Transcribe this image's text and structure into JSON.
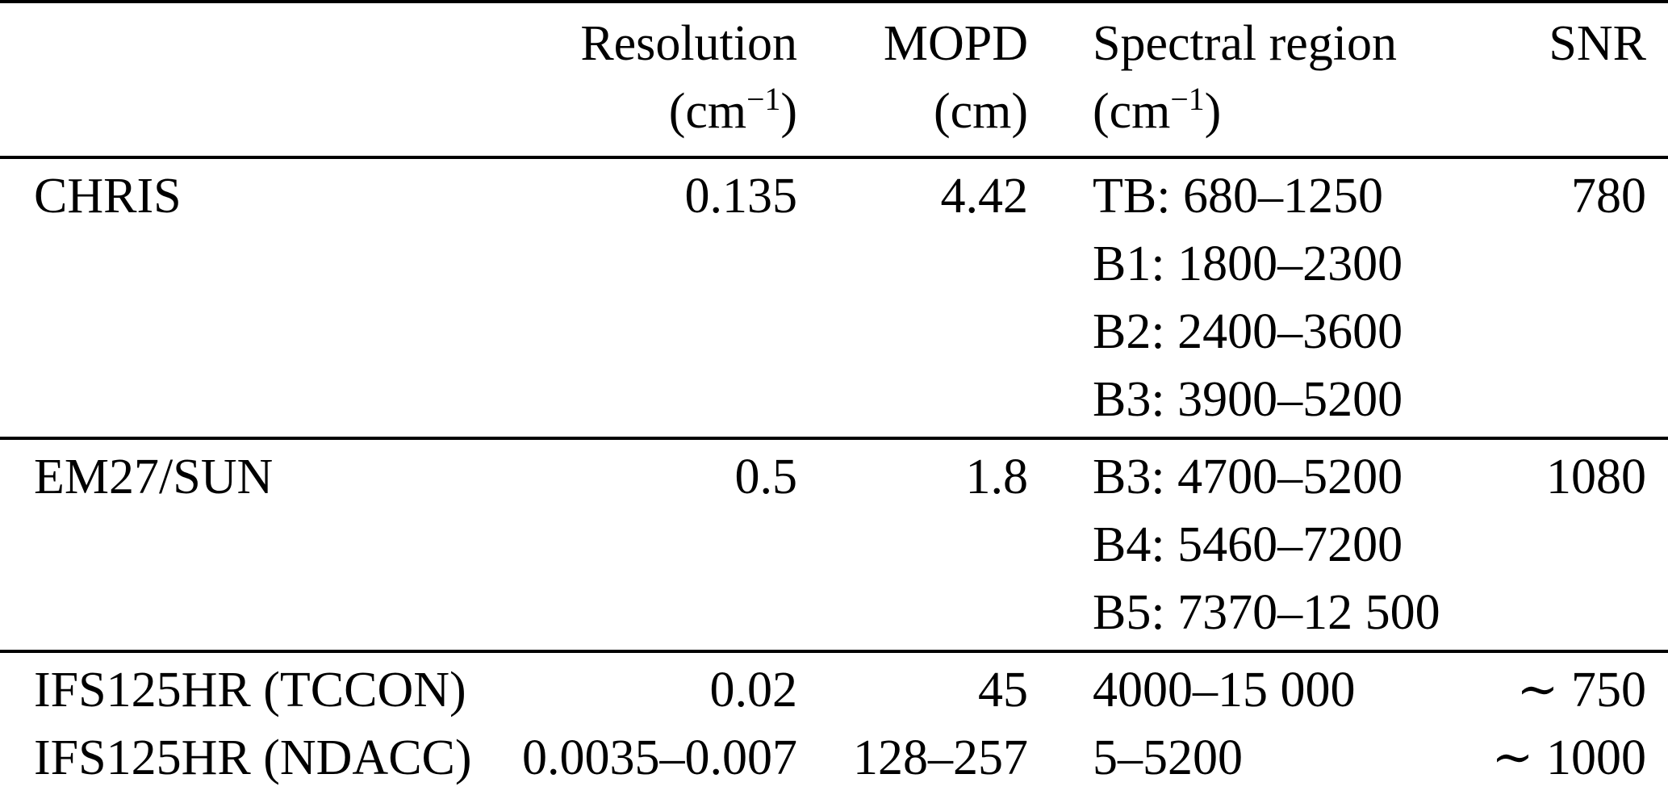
{
  "table": {
    "header": {
      "instrument": {
        "label": ""
      },
      "resolution": {
        "label": "Resolution",
        "unit_prefix": "(cm",
        "unit_sup": "−1",
        "unit_suffix": ")"
      },
      "mopd": {
        "label": "MOPD",
        "unit": "(cm)"
      },
      "spectral_region": {
        "label": "Spectral region",
        "unit_prefix": "(cm",
        "unit_sup": "−1",
        "unit_suffix": ")"
      },
      "snr": {
        "label": "SNR"
      }
    },
    "sections": [
      {
        "rows": [
          {
            "instrument": "CHRIS",
            "resolution": "0.135",
            "mopd": "4.42",
            "spectral_region": [
              "TB: 680–1250",
              "B1: 1800–2300",
              "B2: 2400–3600",
              "B3: 3900–5200"
            ],
            "snr": "780"
          }
        ]
      },
      {
        "rows": [
          {
            "instrument": "EM27/SUN",
            "resolution": "0.5",
            "mopd": "1.8",
            "spectral_region": [
              "B3: 4700–5200",
              "B4: 5460–7200",
              "B5: 7370–12 500"
            ],
            "snr": "1080"
          }
        ]
      },
      {
        "rows": [
          {
            "instrument": "IFS125HR (TCCON)",
            "resolution": "0.02",
            "mopd": "45",
            "spectral_region": [
              "4000–15 000"
            ],
            "snr": "∼ 750"
          },
          {
            "instrument": "IFS125HR (NDACC)",
            "resolution": "0.0035–0.007",
            "mopd": "128–257",
            "spectral_region": [
              "5–5200"
            ],
            "snr": "∼ 1000"
          }
        ]
      }
    ]
  }
}
